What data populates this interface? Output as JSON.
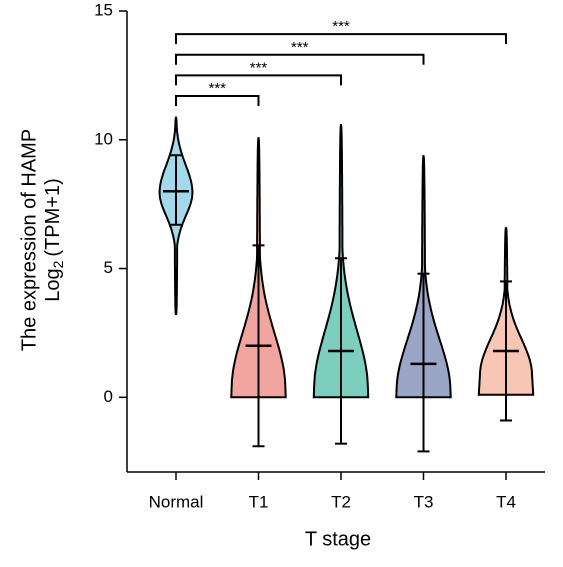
{
  "chart_data": {
    "type": "violin",
    "ylabel": [
      "The expression of HAMP",
      [
        "Log",
        "2",
        "(TPM+1)"
      ]
    ],
    "xlabel": "T stage",
    "categories": [
      "Normal",
      "T1",
      "T2",
      "T3",
      "T4"
    ],
    "groups": [
      {
        "color": "#a3d9eb",
        "min": 3.2,
        "max": 10.9,
        "mode": 8.0,
        "mean": 8.0,
        "lower": 6.7,
        "upper": 9.4
      },
      {
        "color": "#f2a59f",
        "min": 0,
        "max": 10.1,
        "mode": 0.5,
        "mean": 2.0,
        "lower": -1.9,
        "upper": 5.9
      },
      {
        "color": "#7ccfbf",
        "min": 0,
        "max": 10.6,
        "mode": 0.5,
        "mean": 1.8,
        "lower": -1.8,
        "upper": 5.4
      },
      {
        "color": "#9ba6c6",
        "min": 0,
        "max": 9.4,
        "mode": 0.4,
        "mean": 1.3,
        "lower": -2.1,
        "upper": 4.8
      },
      {
        "color": "#f8c6b5",
        "min": 0.1,
        "max": 6.6,
        "mode": 1.0,
        "mean": 1.8,
        "lower": -0.9,
        "upper": 4.5
      }
    ],
    "annotations": [
      {
        "from": 0,
        "to": 1,
        "y": 11.7,
        "label": "***"
      },
      {
        "from": 0,
        "to": 2,
        "y": 12.5,
        "label": "***"
      },
      {
        "from": 0,
        "to": 3,
        "y": 13.3,
        "label": "***"
      },
      {
        "from": 0,
        "to": 4,
        "y": 14.1,
        "label": "***"
      }
    ],
    "ylim": [
      -2.9,
      15
    ],
    "yticks": [
      0,
      5,
      10,
      15
    ]
  }
}
